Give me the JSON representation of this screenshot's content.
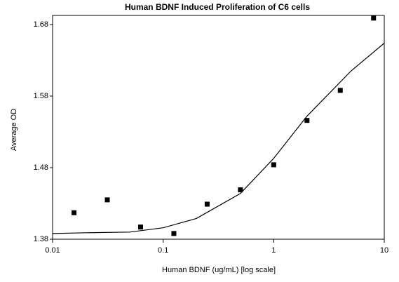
{
  "chart_data": {
    "type": "scatter",
    "title": "Human BDNF Induced Proliferation of C6 cells",
    "x_label": "Human BDNF (ug/mL) [log scale]",
    "y_label": "Average OD",
    "x_scale": "log",
    "xlim": [
      0.01,
      10
    ],
    "xticks": [
      0.01,
      0.1,
      1,
      10
    ],
    "ylim": [
      1.38,
      1.6927
    ],
    "yticks": [
      1.38,
      1.48,
      1.58,
      1.68
    ],
    "series": [
      {
        "mode": "markers",
        "color": "#000000",
        "x": [
          0.015625,
          0.03125,
          0.0625,
          0.125,
          0.25,
          0.5,
          1,
          2,
          4,
          8
        ],
        "values": [
          1.417,
          1.435,
          1.397,
          1.388,
          1.429,
          1.449,
          1.484,
          1.546,
          1.588,
          1.689
        ]
      },
      {
        "mode": "line",
        "color": "#000000",
        "x": [
          0.01,
          0.02,
          0.05,
          0.1,
          0.2,
          0.5,
          1,
          2,
          5,
          10
        ],
        "values": [
          1.388,
          1.389,
          1.39,
          1.396,
          1.409,
          1.444,
          1.493,
          1.552,
          1.615,
          1.654
        ]
      }
    ]
  }
}
